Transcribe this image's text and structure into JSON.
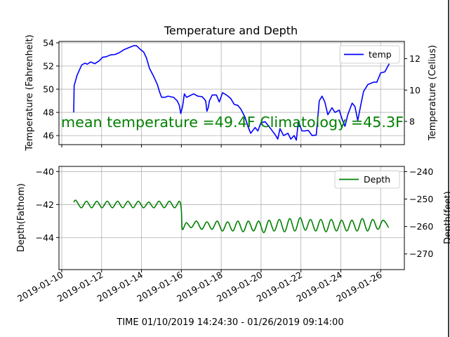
{
  "chart_data": [
    {
      "type": "line",
      "title": "Temperature and Depth",
      "ylabel": "Temperature (Fahrenheit)",
      "ylabel_right": "Temperature (Celius)",
      "x_unit": "days since 2019-01-10",
      "xlim": [
        -0.14,
        17.19
      ],
      "ylim": [
        45.22,
        54.12
      ],
      "ylim_right": [
        6.52,
        13.1
      ],
      "yticks": [
        46,
        48,
        50,
        52,
        54
      ],
      "yticks_right": [
        8,
        10,
        12
      ],
      "grid": true,
      "legend": {
        "label": "temp",
        "placement": "top-right"
      },
      "annotation": "mean temperature =49.4F Climatology =45.3F",
      "annotation_color": "#008000",
      "series": [
        {
          "name": "temp",
          "color": "#0000ff",
          "x": [
            0.6,
            0.62,
            0.77,
            1.0,
            1.17,
            1.28,
            1.45,
            1.66,
            1.88,
            2.05,
            2.23,
            2.43,
            2.68,
            2.89,
            3.11,
            3.32,
            3.61,
            3.75,
            3.9,
            4.11,
            4.25,
            4.4,
            4.61,
            4.8,
            4.9,
            5.01,
            5.18,
            5.33,
            5.61,
            5.79,
            5.9,
            5.97,
            6.07,
            6.15,
            6.26,
            6.62,
            6.83,
            7.05,
            7.22,
            7.28,
            7.35,
            7.41,
            7.55,
            7.76,
            7.9,
            8.07,
            8.26,
            8.48,
            8.65,
            8.84,
            8.98,
            9.19,
            9.34,
            9.48,
            9.7,
            9.84,
            9.99,
            10.2,
            10.48,
            10.7,
            10.84,
            10.95,
            11.13,
            11.35,
            11.49,
            11.66,
            11.77,
            11.87,
            12.05,
            12.2,
            12.37,
            12.56,
            12.77,
            12.92,
            13.06,
            13.2,
            13.35,
            13.56,
            13.71,
            13.92,
            14.07,
            14.21,
            14.35,
            14.57,
            14.71,
            14.85,
            15.0,
            15.14,
            15.36,
            15.64,
            15.81,
            16.0,
            16.21,
            16.43
          ],
          "y": [
            48.0,
            50.3,
            51.2,
            52.1,
            52.25,
            52.15,
            52.35,
            52.2,
            52.45,
            52.75,
            52.8,
            52.95,
            53.0,
            53.15,
            53.4,
            53.55,
            53.75,
            53.75,
            53.5,
            53.2,
            52.7,
            51.8,
            51.1,
            50.4,
            49.8,
            49.3,
            49.3,
            49.4,
            49.3,
            49.0,
            48.6,
            47.9,
            48.6,
            49.6,
            49.3,
            49.6,
            49.4,
            49.35,
            49.0,
            48.1,
            48.4,
            49.0,
            49.5,
            49.5,
            48.9,
            49.7,
            49.5,
            49.2,
            48.7,
            48.6,
            48.3,
            47.6,
            46.8,
            46.2,
            46.7,
            46.4,
            47.1,
            47.2,
            46.6,
            46.1,
            45.7,
            46.6,
            46.0,
            46.2,
            45.7,
            46.0,
            45.6,
            47.2,
            46.4,
            46.4,
            46.45,
            46.0,
            46.05,
            49.0,
            49.4,
            48.9,
            47.8,
            48.4,
            48.0,
            48.2,
            47.4,
            46.8,
            47.8,
            48.8,
            48.5,
            47.3,
            48.6,
            49.8,
            50.4,
            50.6,
            50.6,
            51.4,
            51.5,
            52.2
          ]
        }
      ]
    },
    {
      "type": "line",
      "ylabel": "Depth(Fathom)",
      "ylabel_right": "Depth(feet)",
      "xlabel": "TIME 01/10/2019 14:24:30 - 01/26/2019 09:14:00",
      "x_unit": "days since 2019-01-10",
      "xlim": [
        -0.14,
        17.19
      ],
      "ylim": [
        -45.94,
        -39.69
      ],
      "ylim_right": [
        -275.7,
        -238.1
      ],
      "yticks": [
        -40,
        -42,
        -44
      ],
      "yticks_right": [
        -240,
        -250,
        -260,
        -270
      ],
      "xticks": [
        0,
        2,
        4,
        6,
        8,
        10,
        12,
        14,
        16
      ],
      "xticklabels": [
        "2019-01-10",
        "2019-01-12",
        "2019-01-14",
        "2019-01-16",
        "2019-01-18",
        "2019-01-20",
        "2019-01-22",
        "2019-01-24",
        "2019-01-26"
      ],
      "grid": true,
      "legend": {
        "label": "Depth",
        "placement": "top-right"
      },
      "series": [
        {
          "name": "Depth",
          "color": "#008000",
          "x": [
            0.6,
            0.72,
            0.98,
            1.24,
            1.5,
            1.76,
            2.02,
            2.28,
            2.54,
            2.8,
            3.06,
            3.32,
            3.58,
            3.84,
            4.1,
            4.36,
            4.62,
            4.88,
            5.14,
            5.4,
            5.66,
            5.9,
            6.0,
            6.05,
            6.25,
            6.5,
            6.76,
            7.02,
            7.28,
            7.54,
            7.8,
            8.06,
            8.32,
            8.58,
            8.84,
            9.1,
            9.36,
            9.62,
            9.88,
            10.14,
            10.4,
            10.66,
            10.92,
            11.18,
            11.44,
            11.7,
            11.96,
            12.22,
            12.48,
            12.74,
            13.0,
            13.26,
            13.52,
            13.78,
            14.04,
            14.3,
            14.56,
            14.82,
            15.08,
            15.34,
            15.6,
            15.86,
            16.12,
            16.4
          ],
          "y": [
            -41.85,
            -41.75,
            -42.2,
            -41.8,
            -42.2,
            -41.8,
            -42.2,
            -41.8,
            -42.2,
            -41.8,
            -42.2,
            -41.8,
            -42.2,
            -41.8,
            -42.2,
            -41.85,
            -42.2,
            -41.8,
            -42.2,
            -41.8,
            -42.2,
            -41.8,
            -42.3,
            -43.5,
            -43.1,
            -43.4,
            -43.0,
            -43.5,
            -43.05,
            -43.5,
            -43.0,
            -43.6,
            -43.05,
            -43.6,
            -43.0,
            -43.65,
            -43.0,
            -43.6,
            -43.0,
            -43.7,
            -42.95,
            -43.6,
            -42.9,
            -43.65,
            -42.85,
            -43.6,
            -42.8,
            -43.55,
            -42.9,
            -43.6,
            -42.9,
            -43.65,
            -42.9,
            -43.6,
            -42.95,
            -43.6,
            -42.95,
            -43.6,
            -42.85,
            -43.6,
            -42.9,
            -43.5,
            -42.95,
            -43.4
          ]
        }
      ]
    }
  ]
}
